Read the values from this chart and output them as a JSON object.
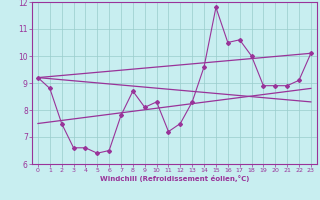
{
  "xlabel": "Windchill (Refroidissement éolien,°C)",
  "bg_color": "#c8eef0",
  "line_color": "#993399",
  "grid_color": "#99cccc",
  "xlim": [
    -0.5,
    23.5
  ],
  "ylim": [
    6,
    12
  ],
  "xticks": [
    0,
    1,
    2,
    3,
    4,
    5,
    6,
    7,
    8,
    9,
    10,
    11,
    12,
    13,
    14,
    15,
    16,
    17,
    18,
    19,
    20,
    21,
    22,
    23
  ],
  "yticks": [
    6,
    7,
    8,
    9,
    10,
    11,
    12
  ],
  "series1_x": [
    0,
    1,
    2,
    3,
    4,
    5,
    6,
    7,
    8,
    9,
    10,
    11,
    12,
    13,
    14,
    15,
    16,
    17,
    18,
    19,
    20,
    21,
    22,
    23
  ],
  "series1_y": [
    9.2,
    8.8,
    7.5,
    6.6,
    6.6,
    6.4,
    6.5,
    7.8,
    8.7,
    8.1,
    8.3,
    7.2,
    7.5,
    8.3,
    9.6,
    11.8,
    10.5,
    10.6,
    10.0,
    8.9,
    8.9,
    8.9,
    9.1,
    10.1
  ],
  "trend1_x": [
    0,
    23
  ],
  "trend1_y": [
    9.2,
    10.1
  ],
  "trend2_x": [
    0,
    23
  ],
  "trend2_y": [
    9.2,
    8.3
  ],
  "trend3_x": [
    0,
    23
  ],
  "trend3_y": [
    7.5,
    8.8
  ]
}
